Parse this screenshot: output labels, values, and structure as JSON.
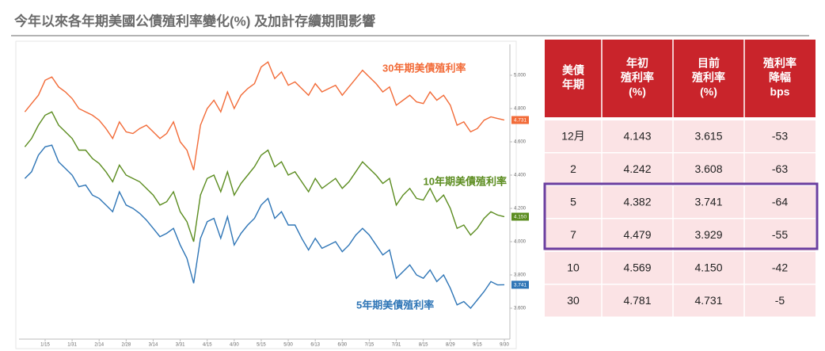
{
  "title": "今年以來各年期美國公債殖利率變化(%) 及加計存續期間影響",
  "chart_data": {
    "type": "line",
    "categories": [
      null,
      null,
      null,
      "1/15",
      null,
      null,
      null,
      "1/31",
      null,
      null,
      null,
      "2/14",
      null,
      null,
      null,
      "2/28",
      null,
      null,
      null,
      "3/14",
      null,
      null,
      null,
      "3/31",
      null,
      null,
      null,
      "4/15",
      null,
      null,
      null,
      "4/30",
      null,
      null,
      null,
      "5/15",
      null,
      null,
      null,
      "5/30",
      null,
      null,
      null,
      "6/13",
      null,
      null,
      null,
      "6/30",
      null,
      null,
      null,
      "7/15",
      null,
      null,
      null,
      "7/31",
      null,
      null,
      null,
      "8/15",
      null,
      null,
      null,
      "8/29",
      null,
      null,
      null,
      "9/15",
      null,
      null,
      null,
      "9/30"
    ],
    "series": [
      {
        "name": "30年期美債殖利率",
        "color": "#f26b38",
        "values": [
          4.78,
          4.83,
          4.88,
          4.97,
          4.99,
          4.93,
          4.9,
          4.86,
          4.8,
          4.78,
          4.76,
          4.73,
          4.68,
          4.62,
          4.72,
          4.66,
          4.65,
          4.68,
          4.7,
          4.66,
          4.62,
          4.65,
          4.72,
          4.6,
          4.55,
          4.43,
          4.7,
          4.8,
          4.85,
          4.78,
          4.9,
          4.8,
          4.88,
          4.92,
          4.95,
          5.05,
          5.08,
          4.98,
          5.02,
          4.94,
          4.96,
          4.92,
          4.88,
          4.95,
          4.9,
          4.92,
          4.94,
          4.88,
          4.93,
          4.98,
          5.03,
          4.99,
          4.95,
          4.9,
          4.93,
          4.82,
          4.85,
          4.88,
          4.84,
          4.83,
          4.9,
          4.85,
          4.88,
          4.82,
          4.7,
          4.72,
          4.66,
          4.68,
          4.73,
          4.75,
          4.74,
          4.731
        ],
        "value_labels": [
          null,
          null,
          null,
          null,
          null,
          null,
          null,
          null,
          null,
          null,
          null,
          null,
          null,
          null,
          null,
          null,
          null,
          null,
          null,
          null,
          null,
          null,
          null,
          null,
          null,
          null,
          null,
          null,
          null,
          null,
          null,
          null,
          null,
          null,
          null,
          null,
          null,
          null,
          null,
          null,
          null,
          null,
          null,
          null,
          null,
          null,
          null,
          null,
          null,
          null,
          null,
          null,
          null,
          null,
          null,
          null,
          null,
          null,
          null,
          null,
          null,
          null,
          null,
          null,
          null,
          null,
          null,
          null,
          null,
          null,
          null,
          "4.731"
        ]
      },
      {
        "name": "10年期美債殖利率",
        "color": "#5b8c1f",
        "values": [
          4.57,
          4.62,
          4.7,
          4.76,
          4.78,
          4.7,
          4.66,
          4.62,
          4.55,
          4.55,
          4.5,
          4.47,
          4.42,
          4.36,
          4.46,
          4.4,
          4.38,
          4.36,
          4.32,
          4.28,
          4.22,
          4.24,
          4.3,
          4.18,
          4.12,
          4.0,
          4.28,
          4.38,
          4.4,
          4.3,
          4.42,
          4.28,
          4.35,
          4.4,
          4.45,
          4.52,
          4.55,
          4.45,
          4.48,
          4.4,
          4.42,
          4.36,
          4.3,
          4.38,
          4.32,
          4.35,
          4.38,
          4.32,
          4.36,
          4.42,
          4.48,
          4.44,
          4.4,
          4.35,
          4.38,
          4.22,
          4.28,
          4.32,
          4.26,
          4.25,
          4.32,
          4.24,
          4.28,
          4.2,
          4.08,
          4.1,
          4.04,
          4.08,
          4.14,
          4.18,
          4.16,
          4.15
        ],
        "value_labels": [
          null,
          null,
          null,
          null,
          null,
          null,
          null,
          null,
          null,
          null,
          null,
          null,
          null,
          null,
          null,
          null,
          null,
          null,
          null,
          null,
          null,
          null,
          null,
          null,
          null,
          null,
          null,
          null,
          null,
          null,
          null,
          null,
          null,
          null,
          null,
          null,
          null,
          null,
          null,
          null,
          null,
          null,
          null,
          null,
          null,
          null,
          null,
          null,
          null,
          null,
          null,
          null,
          null,
          null,
          null,
          null,
          null,
          null,
          null,
          null,
          null,
          null,
          null,
          null,
          null,
          null,
          null,
          null,
          null,
          null,
          null,
          "4.150"
        ]
      },
      {
        "name": "5年期美債殖利率",
        "color": "#2e75b6",
        "values": [
          4.38,
          4.42,
          4.52,
          4.57,
          4.58,
          4.48,
          4.44,
          4.4,
          4.33,
          4.34,
          4.28,
          4.26,
          4.22,
          4.18,
          4.3,
          4.22,
          4.2,
          4.17,
          4.13,
          4.08,
          4.03,
          4.05,
          4.08,
          3.98,
          3.9,
          3.75,
          4.02,
          4.12,
          4.14,
          4.02,
          4.15,
          3.98,
          4.05,
          4.1,
          4.14,
          4.22,
          4.26,
          4.14,
          4.18,
          4.1,
          4.1,
          4.02,
          3.95,
          4.02,
          3.96,
          3.98,
          4.0,
          3.94,
          3.98,
          4.04,
          4.08,
          4.04,
          3.98,
          3.92,
          3.95,
          3.78,
          3.82,
          3.86,
          3.8,
          3.78,
          3.83,
          3.76,
          3.8,
          3.72,
          3.62,
          3.64,
          3.6,
          3.65,
          3.7,
          3.76,
          3.74,
          3.741
        ],
        "value_labels": [
          null,
          null,
          null,
          null,
          null,
          null,
          null,
          null,
          null,
          null,
          null,
          null,
          null,
          null,
          null,
          null,
          null,
          null,
          null,
          null,
          null,
          null,
          null,
          null,
          null,
          null,
          null,
          null,
          null,
          null,
          null,
          null,
          null,
          null,
          null,
          null,
          null,
          null,
          null,
          null,
          null,
          null,
          null,
          null,
          null,
          null,
          null,
          null,
          null,
          null,
          null,
          null,
          null,
          null,
          null,
          null,
          null,
          null,
          null,
          null,
          null,
          null,
          null,
          null,
          null,
          null,
          null,
          null,
          null,
          null,
          null,
          "3.741"
        ]
      }
    ],
    "ylim": [
      3.45,
      5.2
    ],
    "yticks": [
      {
        "value": 3.6,
        "label": "3.600"
      },
      {
        "value": 3.8,
        "label": "3.800"
      },
      {
        "value": 4.0,
        "label": "4.000"
      },
      {
        "value": 4.2,
        "label": "4.200"
      },
      {
        "value": 4.4,
        "label": "4.400"
      },
      {
        "value": 4.6,
        "label": "4.600"
      },
      {
        "value": 4.8,
        "label": "4.800"
      },
      {
        "value": 5.0,
        "label": "5.000"
      }
    ]
  },
  "table": {
    "headers": [
      [
        "美債",
        "年期"
      ],
      [
        "年初",
        "殖利率",
        "(%)"
      ],
      [
        "目前",
        "殖利率",
        "(%)"
      ],
      [
        "殖利率",
        "降幅",
        "bps"
      ]
    ],
    "rows": [
      [
        "12月",
        "4.143",
        "3.615",
        "-53"
      ],
      [
        "2",
        "4.242",
        "3.608",
        "-63"
      ],
      [
        "5",
        "4.382",
        "3.741",
        "-64"
      ],
      [
        "7",
        "4.479",
        "3.929",
        "-55"
      ],
      [
        "10",
        "4.569",
        "4.150",
        "-42"
      ],
      [
        "30",
        "4.781",
        "4.731",
        "-5"
      ]
    ]
  }
}
